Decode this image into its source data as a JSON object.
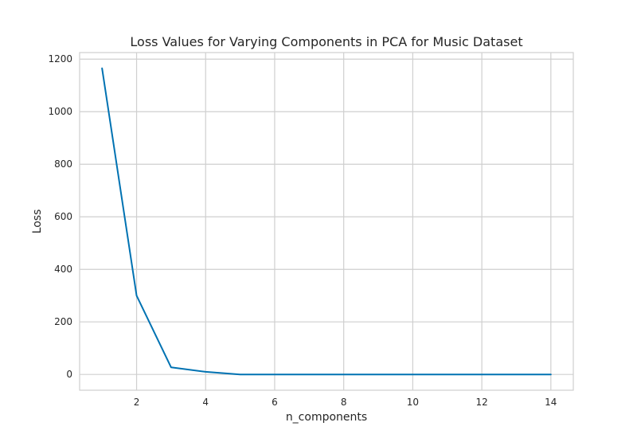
{
  "chart_data": {
    "type": "line",
    "title": "Loss Values for Varying Components in PCA for Music Dataset",
    "xlabel": "n_components",
    "ylabel": "Loss",
    "xlim": [
      0.35,
      14.65
    ],
    "ylim": [
      -60,
      1225
    ],
    "xticks": [
      2,
      4,
      6,
      8,
      10,
      12,
      14
    ],
    "yticks": [
      0,
      200,
      400,
      600,
      800,
      1000,
      1200
    ],
    "grid": true,
    "series": [
      {
        "color": "#0072b2",
        "x": [
          1,
          2,
          3,
          4,
          5,
          6,
          7,
          8,
          9,
          10,
          11,
          12,
          13,
          14
        ],
        "y": [
          1165,
          300,
          27,
          10,
          0,
          0,
          0,
          0,
          0,
          0,
          0,
          0,
          0,
          0
        ]
      }
    ]
  }
}
